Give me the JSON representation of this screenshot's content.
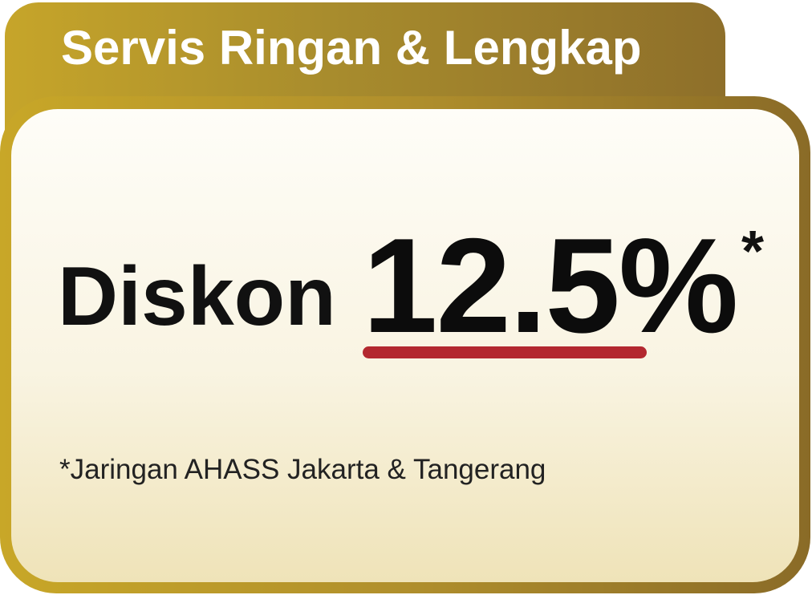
{
  "header": {
    "title": "Servis Ringan & Lengkap"
  },
  "offer": {
    "label": "Diskon",
    "value": "12.5%",
    "asterisk": "*"
  },
  "footnote": "*Jaringan AHASS Jakarta & Tangerang",
  "colors": {
    "gold_light": "#c6a52a",
    "gold_dark": "#8a6b27",
    "underline_red": "#b3282f",
    "text_dark": "#111111",
    "title_text": "#ffffff"
  }
}
